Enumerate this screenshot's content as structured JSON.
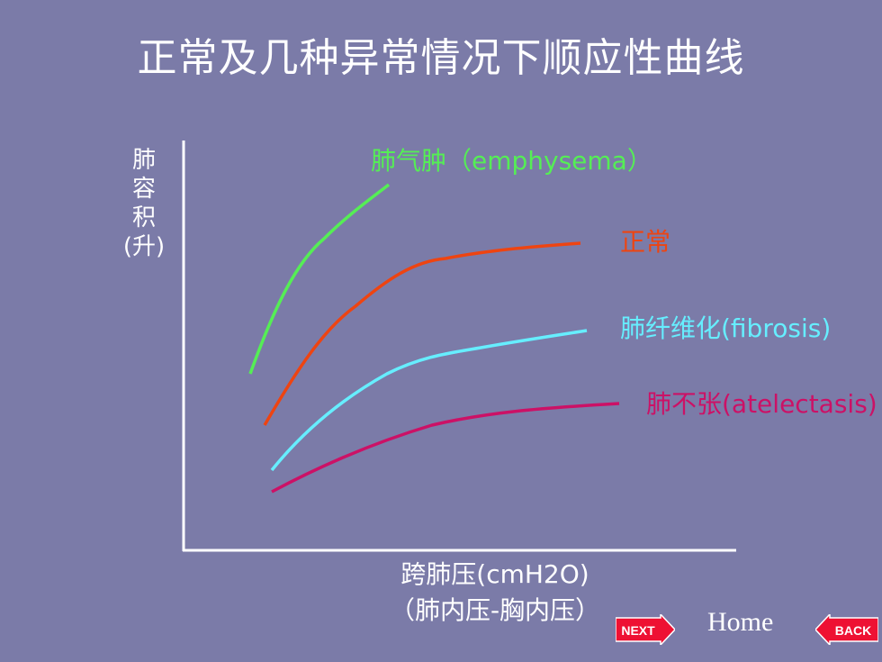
{
  "title": "正常及几种异常情况下顺应性曲线",
  "y_axis": {
    "chars": "肺容积",
    "unit": "(升)"
  },
  "x_axis": {
    "line1": "跨肺压(cmH2O)",
    "line2": "（肺内压-胸内压）"
  },
  "curves": [
    {
      "label": "肺气肿（emphysema）",
      "color": "#55ee55"
    },
    {
      "label": "正常",
      "color": "#ee4411"
    },
    {
      "label": "肺纤维化(fibrosis)",
      "color": "#66eeff"
    },
    {
      "label": "肺不张(atelectasis)",
      "color": "#cc1166"
    }
  ],
  "nav": {
    "next": "NEXT",
    "home": "Home",
    "back": "BACK"
  }
}
